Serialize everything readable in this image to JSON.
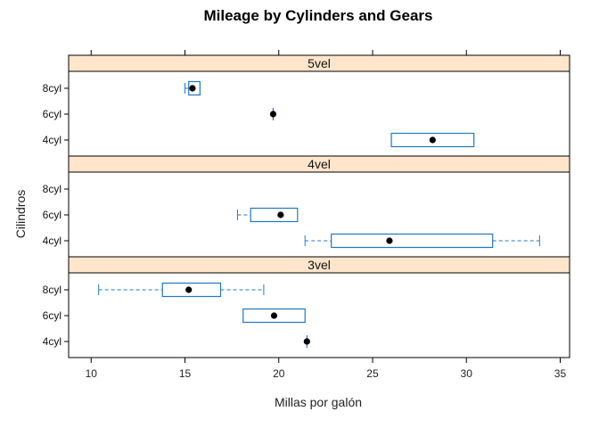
{
  "chart_data": {
    "type": "boxplot",
    "title": "Mileage by Cylinders and Gears",
    "xlabel": "Millas por galón",
    "ylabel": "Cilindros",
    "xlim": [
      8.8,
      35.5
    ],
    "xticks": [
      10,
      15,
      20,
      25,
      30,
      35
    ],
    "categories": [
      "4cyl",
      "6cyl",
      "8cyl"
    ],
    "colors": {
      "strip": "#ffe5cc",
      "box": "#1f78c4",
      "dot": "#000000",
      "frame": "#000000"
    },
    "panels": [
      {
        "name": "5vel",
        "boxes": {
          "8cyl": {
            "min": 15.0,
            "q1": 15.2,
            "median": 15.4,
            "q3": 15.8,
            "max": 15.8,
            "outliers": []
          },
          "6cyl": {
            "min": 19.7,
            "q1": 19.7,
            "median": 19.7,
            "q3": 19.7,
            "max": 19.7,
            "outliers": []
          },
          "4cyl": {
            "min": 26.0,
            "q1": 26.0,
            "median": 28.2,
            "q3": 30.4,
            "max": 30.4,
            "outliers": []
          }
        }
      },
      {
        "name": "4vel",
        "boxes": {
          "6cyl": {
            "min": 17.8,
            "q1": 18.5,
            "median": 20.1,
            "q3": 21.0,
            "max": 21.0,
            "outliers": []
          },
          "4cyl": {
            "min": 21.4,
            "q1": 22.8,
            "median": 25.9,
            "q3": 31.4,
            "max": 33.9,
            "outliers": []
          }
        }
      },
      {
        "name": "3vel",
        "boxes": {
          "8cyl": {
            "min": 10.4,
            "q1": 13.8,
            "median": 15.2,
            "q3": 16.9,
            "max": 19.2,
            "outliers": []
          },
          "6cyl": {
            "min": 18.1,
            "q1": 18.1,
            "median": 19.75,
            "q3": 21.4,
            "max": 21.4,
            "outliers": []
          },
          "4cyl": {
            "min": 21.5,
            "q1": 21.5,
            "median": 21.5,
            "q3": 21.5,
            "max": 21.5,
            "outliers": []
          }
        }
      }
    ]
  }
}
